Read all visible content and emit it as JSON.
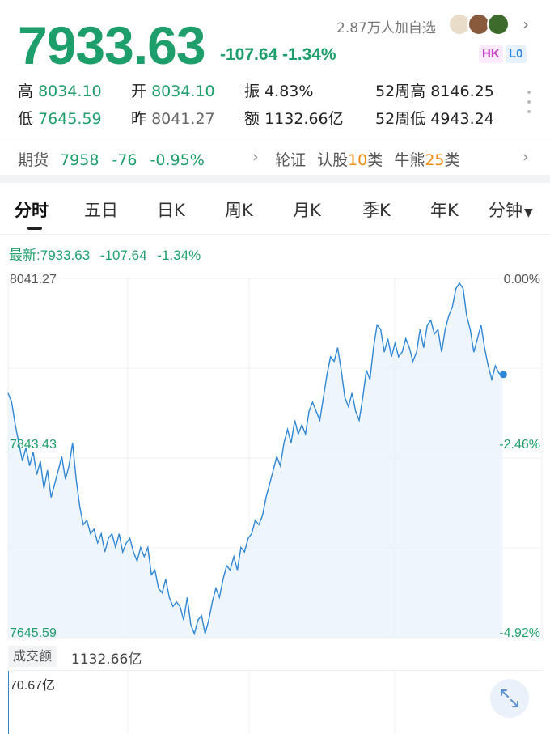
{
  "header": {
    "price": "7933.63",
    "change": "-107.64  -1.34%",
    "followers": "2.87万人加自选",
    "badges": [
      "HK",
      "L0"
    ]
  },
  "stats": {
    "high_label": "高",
    "high": "8034.10",
    "open_label": "开",
    "open": "8034.10",
    "amplitude_label": "振",
    "amplitude": "4.83%",
    "wk52_high_label": "52周高",
    "wk52_high": "8146.25",
    "low_label": "低",
    "low": "7645.59",
    "prev_label": "昨",
    "prev": "8041.27",
    "amount_label": "额",
    "amount": "1132.66亿",
    "wk52_low_label": "52周低",
    "wk52_low": "4943.24"
  },
  "futures": {
    "label": "期货",
    "price": "7958",
    "change": "-76",
    "pct": "-0.95%",
    "warrants_label": "轮证",
    "call_prefix": "认股",
    "call_count": "10",
    "call_suffix": "类",
    "bull_prefix": "牛熊",
    "bull_count": "25",
    "bull_suffix": "类"
  },
  "tabs": [
    "分时",
    "五日",
    "日K",
    "周K",
    "月K",
    "季K",
    "年K",
    "分钟"
  ],
  "latest": {
    "label": "最新:",
    "price": "7933.63",
    "change": "-107.64",
    "pct": "-1.34%"
  },
  "chart_data": {
    "type": "line",
    "y_axis_left": [
      "8041.27",
      "7843.43",
      "7645.59"
    ],
    "y_axis_right": [
      "0.00%",
      "-2.46%",
      "-4.92%"
    ],
    "ylim": [
      7645.59,
      8041.27
    ],
    "series": [
      {
        "values": [
          7915,
          7905,
          7880,
          7860,
          7840,
          7855,
          7835,
          7850,
          7825,
          7840,
          7810,
          7830,
          7800,
          7815,
          7830,
          7845,
          7820,
          7835,
          7860,
          7820,
          7790,
          7770,
          7775,
          7760,
          7765,
          7750,
          7760,
          7740,
          7755,
          7760,
          7745,
          7760,
          7740,
          7750,
          7755,
          7740,
          7730,
          7745,
          7735,
          7745,
          7715,
          7720,
          7700,
          7695,
          7710,
          7690,
          7680,
          7685,
          7680,
          7665,
          7690,
          7660,
          7650,
          7665,
          7670,
          7650,
          7665,
          7685,
          7700,
          7690,
          7710,
          7725,
          7720,
          7735,
          7720,
          7745,
          7740,
          7755,
          7760,
          7775,
          7770,
          7780,
          7800,
          7815,
          7830,
          7845,
          7835,
          7860,
          7875,
          7860,
          7885,
          7870,
          7880,
          7870,
          7895,
          7905,
          7895,
          7885,
          7910,
          7935,
          7955,
          7950,
          7965,
          7940,
          7910,
          7900,
          7915,
          7895,
          7885,
          7910,
          7940,
          7930,
          7965,
          7990,
          7985,
          7960,
          7975,
          7955,
          7970,
          7955,
          7960,
          7975,
          7965,
          7950,
          7960,
          7985,
          7965,
          7990,
          7995,
          7980,
          7985,
          7960,
          7985,
          8000,
          8010,
          8030,
          8036,
          8030,
          8000,
          7985,
          7960,
          7975,
          7990,
          7965,
          7945,
          7930,
          7945,
          7937,
          7933.63
        ]
      }
    ]
  },
  "volume": {
    "tag": "成交额",
    "value": "1132.66亿",
    "max": "70.67亿"
  },
  "colors": {
    "down": "#1e9e6a",
    "line": "#2e86d4",
    "accent": "#f08a12"
  }
}
